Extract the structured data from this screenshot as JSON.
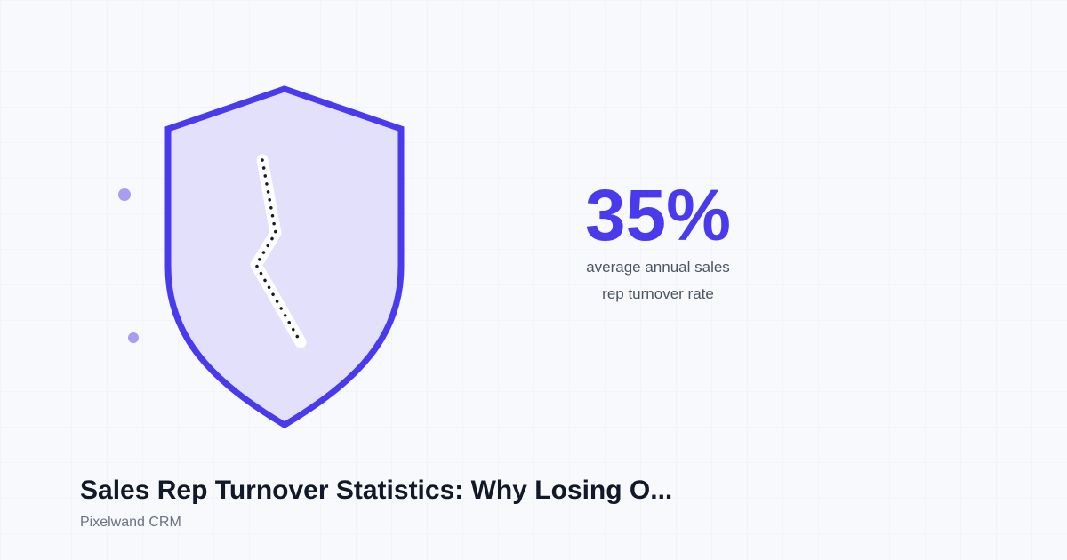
{
  "stat": {
    "value": "35%",
    "label_lines": [
      "average annual sales",
      "rep turnover rate"
    ]
  },
  "title": "Sales Rep Turnover Statistics: Why Losing O...",
  "brand": "Pixelwand CRM"
}
